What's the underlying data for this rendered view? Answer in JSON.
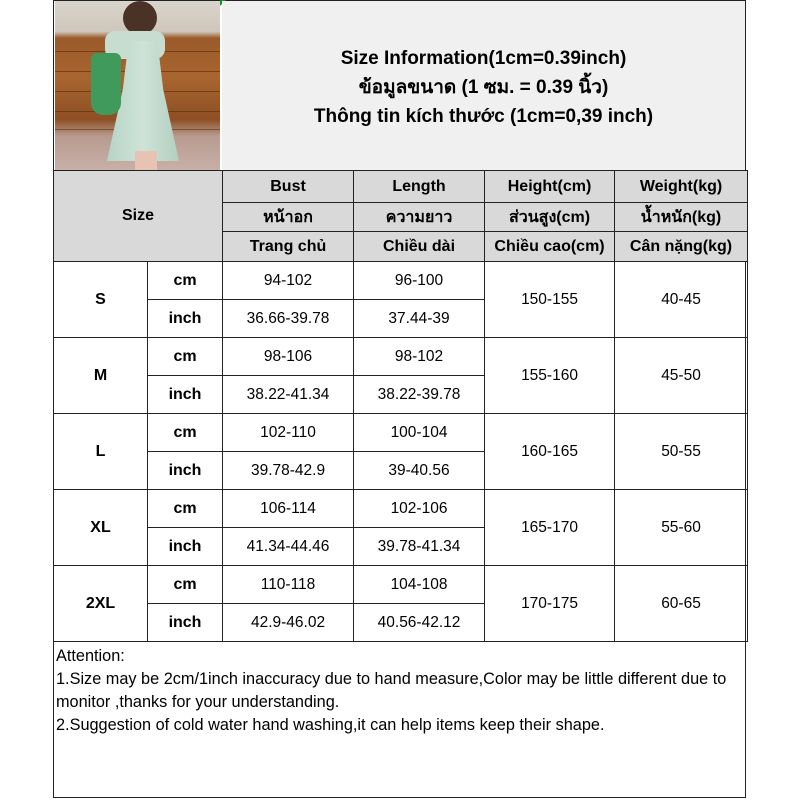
{
  "title": {
    "en": "Size Information(1cm=0.39inch)",
    "th": "ข้อมูลขนาด (1 ซม. = 0.39 นิ้ว)",
    "vi": "Thông tin kích thước (1cm=0,39 inch)"
  },
  "table": {
    "size_label": "Size",
    "columns": [
      {
        "en": "Bust",
        "th": "หน้าอก",
        "vi": "Trang chủ"
      },
      {
        "en": "Length",
        "th": "ความยาว",
        "vi": "Chiều dài"
      },
      {
        "en": "Height(cm)",
        "th": "ส่วนสูง(cm)",
        "vi": "Chiều cao(cm)"
      },
      {
        "en": "Weight(kg)",
        "th": "น้ำหนัก(kg)",
        "vi": "Cân nặng(kg)"
      }
    ],
    "unit_cm": "cm",
    "unit_inch": "inch",
    "rows": [
      {
        "size": "S",
        "bust_cm": "94-102",
        "length_cm": "96-100",
        "bust_inch": "36.66-39.78",
        "length_inch": "37.44-39",
        "height": "150-155",
        "weight": "40-45"
      },
      {
        "size": "M",
        "bust_cm": "98-106",
        "length_cm": "98-102",
        "bust_inch": "38.22-41.34",
        "length_inch": "38.22-39.78",
        "height": "155-160",
        "weight": "45-50"
      },
      {
        "size": "L",
        "bust_cm": "102-110",
        "length_cm": "100-104",
        "bust_inch": "39.78-42.9",
        "length_inch": "39-40.56",
        "height": "160-165",
        "weight": "50-55"
      },
      {
        "size": "XL",
        "bust_cm": "106-114",
        "length_cm": "102-106",
        "bust_inch": "41.34-44.46",
        "length_inch": "39.78-41.34",
        "height": "165-170",
        "weight": "55-60"
      },
      {
        "size": "2XL",
        "bust_cm": "110-118",
        "length_cm": "104-108",
        "bust_inch": "42.9-46.02",
        "length_inch": "40.56-42.12",
        "height": "170-175",
        "weight": "60-65"
      }
    ]
  },
  "attention": {
    "heading": "Attention:",
    "line1": "1.Size may be 2cm/1inch inaccuracy due to hand measure,Color may be little different due to monitor ,thanks for your understanding.",
    "line2": "2.Suggestion of cold water hand washing,it can help items keep their shape."
  }
}
